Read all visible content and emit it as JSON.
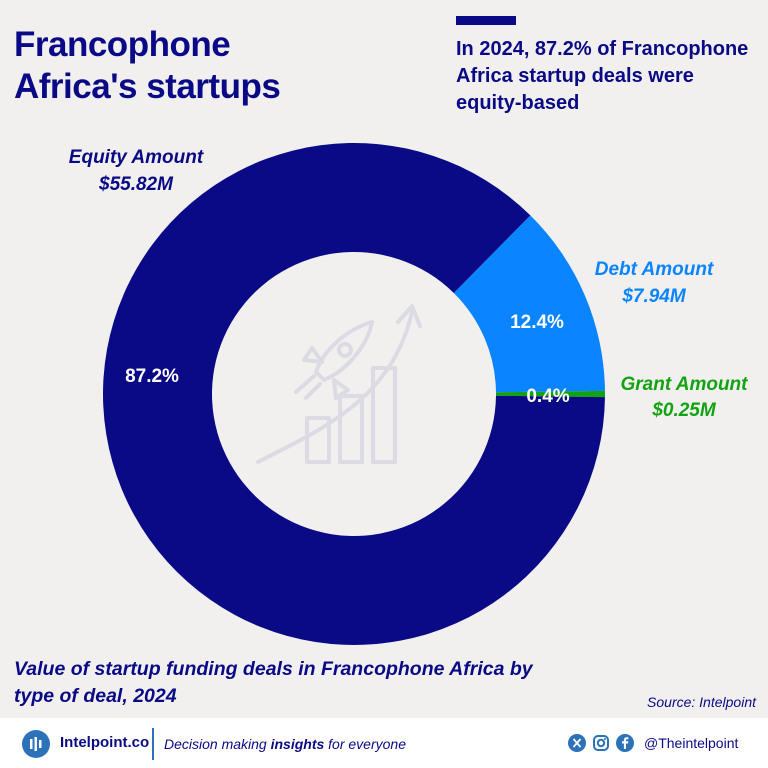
{
  "header": {
    "title": "Francophone Africa's startups",
    "headline": "In 2024, 87.2% of Francophone Africa startup deals were equity-based"
  },
  "colors": {
    "equity": "#0a0a87",
    "debt": "#0a84ff",
    "grant": "#12a312",
    "background": "#f1f0ee"
  },
  "chart_data": {
    "type": "pie",
    "donut": true,
    "title": "Value of startup funding deals in Francophone Africa by type of deal, 2024",
    "slices": [
      {
        "label": "Equity Amount",
        "value_label": "$55.82M",
        "value": 55.82,
        "percent": 87.2,
        "percent_label": "87.2%",
        "color": "#0a0a87"
      },
      {
        "label": "Debt Amount",
        "value_label": "$7.94M",
        "value": 7.94,
        "percent": 12.4,
        "percent_label": "12.4%",
        "color": "#0a84ff"
      },
      {
        "label": "Grant Amount",
        "value_label": "$0.25M",
        "value": 0.25,
        "percent": 0.4,
        "percent_label": "0.4%",
        "color": "#12a312"
      }
    ],
    "center_icon": "rocket-growth-icon"
  },
  "subtitle": "Value of startup funding deals in Francophone Africa by type of deal, 2024",
  "source": "Source: Intelpoint",
  "footer": {
    "brand": "Intelpoint.co",
    "tagline_pre": "Decision making ",
    "tagline_bold": "insights",
    "tagline_post": " for everyone",
    "handle": "@Theintelpoint",
    "icons": [
      "x-icon",
      "instagram-icon",
      "facebook-icon"
    ]
  }
}
